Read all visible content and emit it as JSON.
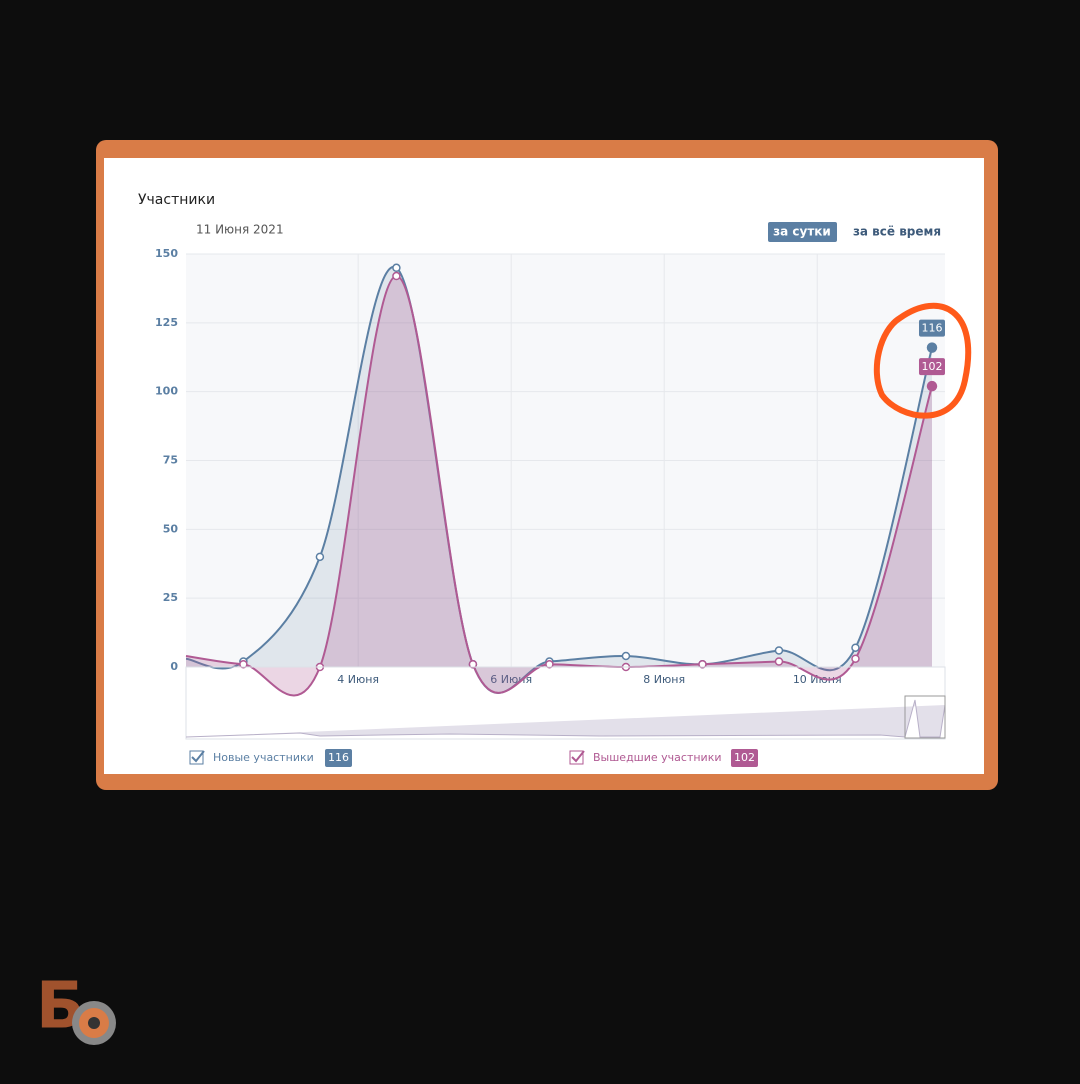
{
  "logo": "Б",
  "chart_data": {
    "type": "area",
    "title": "Участники",
    "date": "11 Июня 2021",
    "buttons": [
      "за сутки",
      "за всё время"
    ],
    "x": [
      1.75,
      2.5,
      3.5,
      4.5,
      5.5,
      6.5,
      7.5,
      8.5,
      9.5,
      10.5,
      11.5
    ],
    "series": [
      {
        "name": "Новые участники",
        "color": "#5b7fa3",
        "values": [
          3,
          2,
          40,
          145,
          1,
          2,
          4,
          1,
          6,
          7,
          116
        ]
      },
      {
        "name": "Вышедшие участники",
        "color": "#b05a93",
        "values": [
          4,
          1,
          0,
          142,
          1,
          1,
          0,
          1,
          2,
          3,
          102
        ]
      }
    ],
    "xlim": [
      1.75,
      11.67
    ],
    "xticks": [
      {
        "value": 4,
        "label": "4 Июня"
      },
      {
        "value": 6,
        "label": "6 Июня"
      },
      {
        "value": 8,
        "label": "8 Июня"
      },
      {
        "value": 10,
        "label": "10 Июня"
      }
    ],
    "ylim": [
      0,
      150
    ],
    "yticks": [
      0,
      25,
      50,
      75,
      100,
      125,
      150
    ],
    "grid": true
  }
}
